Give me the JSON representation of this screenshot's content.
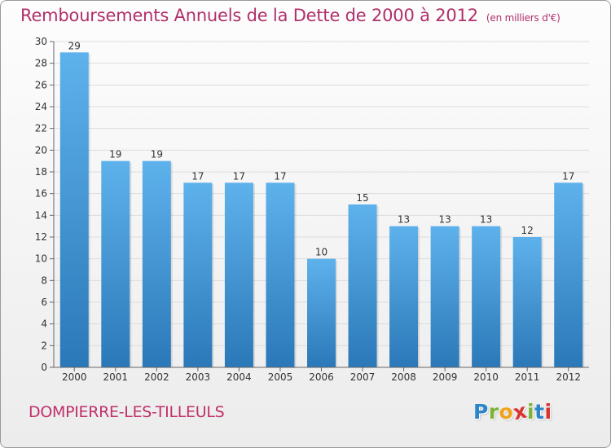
{
  "title": "Remboursements Annuels de la Dette de 2000 à 2012",
  "unit_label": "(en milliers d'€)",
  "commune": "DOMPIERRE-LES-TILLEULS",
  "logo": {
    "letters": [
      "P",
      "r",
      "o",
      "x",
      "i",
      "t",
      "i"
    ],
    "colors": [
      "#2a86c8",
      "#7bb338",
      "#f0a21c",
      "#d9322f",
      "#7bb338",
      "#2a86c8",
      "#d9322f"
    ]
  },
  "colors": {
    "bar_top": "#5eb2ec",
    "bar_bottom": "#2b78b8",
    "axis": "#666666",
    "grid": "#dddddd",
    "title": "#b0306a"
  },
  "chart_data": {
    "type": "bar",
    "categories": [
      "2000",
      "2001",
      "2002",
      "2003",
      "2004",
      "2005",
      "2006",
      "2007",
      "2008",
      "2009",
      "2010",
      "2011",
      "2012"
    ],
    "values": [
      29,
      19,
      19,
      17,
      17,
      17,
      10,
      15,
      13,
      13,
      13,
      12,
      17
    ],
    "ylim": [
      0,
      30
    ],
    "yticks": [
      0,
      2,
      4,
      6,
      8,
      10,
      12,
      14,
      16,
      18,
      20,
      22,
      24,
      26,
      28,
      30
    ],
    "grid": true,
    "legend": "none"
  }
}
